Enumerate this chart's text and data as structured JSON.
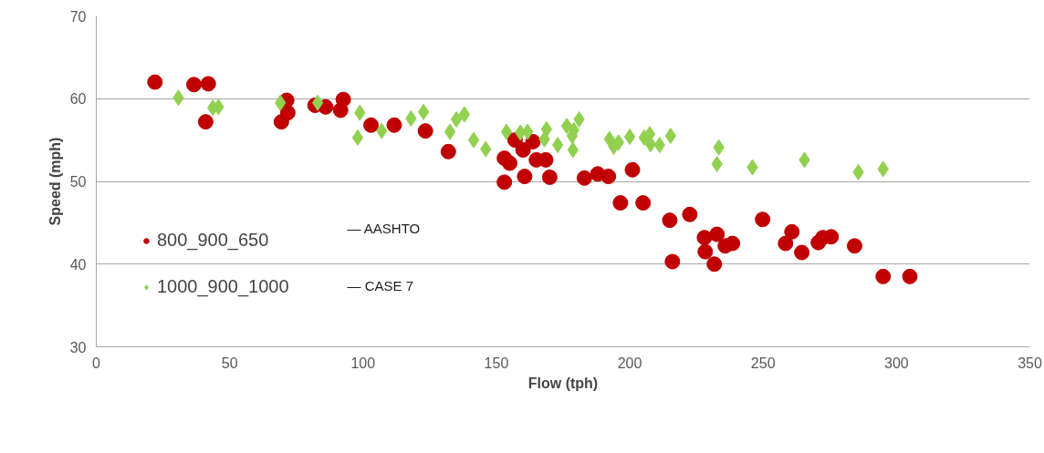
{
  "chart_data": {
    "type": "scatter",
    "xlabel": "Flow (tph)",
    "ylabel": "Speed (mph)",
    "xlim": [
      0,
      350
    ],
    "xticks": [
      0,
      50,
      100,
      150,
      200,
      250,
      300,
      350
    ],
    "ylim": [
      30,
      70
    ],
    "yticks": [
      30,
      40,
      50,
      60,
      70
    ],
    "grid": "y",
    "legend": "left",
    "annotations": [
      "— AASHTO",
      "— CASE 7"
    ],
    "series": [
      {
        "name": "800_900_650",
        "color": "#c00000",
        "marker": "circle",
        "x": [
          22,
          36.6,
          42,
          41,
          71.4,
          71.8,
          69.4,
          82,
          86,
          91.6,
          92.6,
          103,
          111.7,
          123.4,
          132,
          157,
          163.7,
          160,
          153,
          155,
          165,
          168.5,
          153,
          160.6,
          170,
          183,
          188,
          192,
          201,
          196.5,
          205,
          215,
          222.5,
          228,
          228.3,
          216,
          232.7,
          238.5,
          235.8,
          231.7,
          249.8,
          258.4,
          260.8,
          264.5,
          270.7,
          272.4,
          275.5,
          284.3,
          295,
          305
        ],
        "values": [
          62,
          61.7,
          61.8,
          57.2,
          59.8,
          58.3,
          57.2,
          59.2,
          59,
          58.6,
          59.9,
          56.8,
          56.8,
          56.1,
          53.6,
          55,
          54.8,
          53.8,
          52.8,
          52.2,
          52.6,
          52.6,
          49.9,
          50.6,
          50.5,
          50.4,
          50.9,
          50.6,
          51.4,
          47.4,
          47.4,
          45.3,
          46,
          43.2,
          41.5,
          40.3,
          43.6,
          42.5,
          42.2,
          40,
          45.4,
          42.5,
          43.9,
          41.4,
          42.6,
          43.2,
          43.3,
          42.2,
          38.5,
          38.5
        ]
      },
      {
        "name": "1000_900_1000",
        "color": "#92d050",
        "marker": "diamond",
        "x": [
          30.8,
          43.7,
          45.8,
          69,
          83,
          98.8,
          98,
          107,
          118,
          122.7,
          132.6,
          135,
          138,
          141.5,
          146,
          153.8,
          159,
          161.7,
          168.8,
          168,
          173,
          176.4,
          179,
          178.4,
          178.7,
          181,
          192.4,
          194,
          195.8,
          200,
          205.4,
          207.5,
          207.8,
          211.2,
          215.3,
          233.4,
          232.7,
          246,
          265.5,
          285.7,
          295
        ],
        "values": [
          60.1,
          58.9,
          59,
          59.5,
          59.5,
          58.3,
          55.3,
          56.1,
          57.6,
          58.4,
          56,
          57.5,
          58.1,
          55,
          53.9,
          56,
          55.9,
          56,
          56.3,
          55.1,
          54.4,
          56.7,
          56.2,
          55.5,
          53.8,
          57.5,
          55.1,
          54.2,
          54.7,
          55.4,
          55.3,
          55.7,
          54.5,
          54.4,
          55.5,
          54.1,
          52.1,
          51.7,
          52.6,
          51.1,
          51.5
        ]
      }
    ]
  }
}
